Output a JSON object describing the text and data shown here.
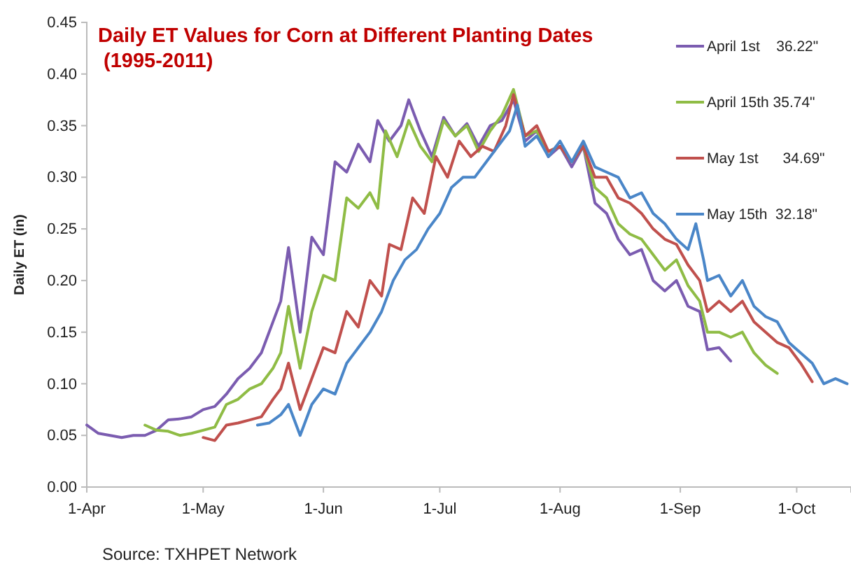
{
  "chart_data": {
    "type": "line",
    "title": "Daily ET Values for Corn at Different Planting Dates (1995-2011)",
    "ylabel": "Daily ET (in)",
    "annotations": [
      "Source: TXHPET Network"
    ],
    "xlim": [
      "--04-01",
      "--10-15"
    ],
    "xticks": [
      {
        "value": "--04-01",
        "label": "1-Apr"
      },
      {
        "value": "--05-01",
        "label": "1-May"
      },
      {
        "value": "--06-01",
        "label": "1-Jun"
      },
      {
        "value": "--07-01",
        "label": "1-Jul"
      },
      {
        "value": "--08-01",
        "label": "1-Aug"
      },
      {
        "value": "--09-01",
        "label": "1-Sep"
      },
      {
        "value": "--10-01",
        "label": "1-Oct"
      }
    ],
    "ylim": [
      0,
      0.45
    ],
    "yticks": [
      {
        "value": 0,
        "label": "0.00"
      },
      {
        "value": 0.05,
        "label": "0.05"
      },
      {
        "value": 0.1,
        "label": "0.10"
      },
      {
        "value": 0.15,
        "label": "0.15"
      },
      {
        "value": 0.2,
        "label": "0.20"
      },
      {
        "value": 0.25,
        "label": "0.25"
      },
      {
        "value": 0.3,
        "label": "0.30"
      },
      {
        "value": 0.35,
        "label": "0.35"
      },
      {
        "value": 0.4,
        "label": "0.40"
      },
      {
        "value": 0.45,
        "label": "0.45"
      }
    ],
    "grid": false,
    "legend": "top right",
    "marker": "none",
    "line_style": "solid",
    "series": [
      {
        "name": "April 1st    36.22\"",
        "color": "#7b5cb0",
        "x": [
          "--04-01",
          "--04-04",
          "--04-07",
          "--04-10",
          "--04-13",
          "--04-16",
          "--04-19",
          "--04-22",
          "--04-25",
          "--04-28",
          "--05-01",
          "--05-04",
          "--05-07",
          "--05-10",
          "--05-13",
          "--05-16",
          "--05-19",
          "--05-21",
          "--05-23",
          "--05-26",
          "--05-29",
          "--06-01",
          "--06-04",
          "--06-07",
          "--06-10",
          "--06-13",
          "--06-15",
          "--06-18",
          "--06-21",
          "--06-23",
          "--06-26",
          "--06-29",
          "--07-02",
          "--07-05",
          "--07-08",
          "--07-11",
          "--07-14",
          "--07-17",
          "--07-20",
          "--07-23",
          "--07-26",
          "--07-29",
          "--08-01",
          "--08-04",
          "--08-07",
          "--08-10",
          "--08-13",
          "--08-16",
          "--08-19",
          "--08-22",
          "--08-25",
          "--08-28",
          "--08-31",
          "--09-03",
          "--09-06",
          "--09-08",
          "--09-11",
          "--09-14"
        ],
        "values": [
          0.06,
          0.052,
          0.05,
          0.048,
          0.05,
          0.05,
          0.055,
          0.065,
          0.066,
          0.068,
          0.075,
          0.078,
          0.09,
          0.105,
          0.115,
          0.13,
          0.16,
          0.18,
          0.232,
          0.15,
          0.242,
          0.225,
          0.315,
          0.305,
          0.332,
          0.315,
          0.355,
          0.335,
          0.35,
          0.375,
          0.345,
          0.32,
          0.358,
          0.34,
          0.352,
          0.33,
          0.35,
          0.355,
          0.375,
          0.335,
          0.345,
          0.32,
          0.33,
          0.31,
          0.33,
          0.275,
          0.265,
          0.24,
          0.225,
          0.23,
          0.2,
          0.19,
          0.2,
          0.175,
          0.17,
          0.133,
          0.135,
          0.122
        ]
      },
      {
        "name": "April 15th 35.74\"",
        "color": "#8fbc45",
        "x": [
          "--04-16",
          "--04-19",
          "--04-22",
          "--04-25",
          "--04-28",
          "--05-01",
          "--05-04",
          "--05-07",
          "--05-10",
          "--05-13",
          "--05-16",
          "--05-19",
          "--05-21",
          "--05-23",
          "--05-26",
          "--05-29",
          "--06-01",
          "--06-04",
          "--06-07",
          "--06-10",
          "--06-13",
          "--06-15",
          "--06-17",
          "--06-20",
          "--06-23",
          "--06-26",
          "--06-29",
          "--07-02",
          "--07-05",
          "--07-08",
          "--07-11",
          "--07-14",
          "--07-17",
          "--07-20",
          "--07-23",
          "--07-26",
          "--07-29",
          "--08-01",
          "--08-04",
          "--08-07",
          "--08-10",
          "--08-13",
          "--08-16",
          "--08-19",
          "--08-22",
          "--08-25",
          "--08-28",
          "--08-31",
          "--09-03",
          "--09-06",
          "--09-08",
          "--09-11",
          "--09-14",
          "--09-17",
          "--09-20",
          "--09-23",
          "--09-26"
        ],
        "values": [
          0.06,
          0.055,
          0.054,
          0.05,
          0.052,
          0.055,
          0.058,
          0.08,
          0.085,
          0.095,
          0.1,
          0.115,
          0.13,
          0.175,
          0.115,
          0.17,
          0.205,
          0.2,
          0.28,
          0.27,
          0.285,
          0.27,
          0.345,
          0.32,
          0.355,
          0.33,
          0.315,
          0.355,
          0.34,
          0.35,
          0.325,
          0.345,
          0.36,
          0.385,
          0.34,
          0.345,
          0.325,
          0.33,
          0.315,
          0.33,
          0.29,
          0.28,
          0.255,
          0.245,
          0.24,
          0.225,
          0.21,
          0.22,
          0.195,
          0.18,
          0.15,
          0.15,
          0.145,
          0.15,
          0.13,
          0.118,
          0.11
        ]
      },
      {
        "name": "May 1st      34.69\"",
        "color": "#c0504d",
        "x": [
          "--05-01",
          "--05-04",
          "--05-07",
          "--05-10",
          "--05-13",
          "--05-16",
          "--05-19",
          "--05-21",
          "--05-23",
          "--05-26",
          "--05-29",
          "--06-01",
          "--06-04",
          "--06-07",
          "--06-10",
          "--06-13",
          "--06-16",
          "--06-18",
          "--06-21",
          "--06-24",
          "--06-27",
          "--06-30",
          "--07-03",
          "--07-06",
          "--07-09",
          "--07-12",
          "--07-15",
          "--07-18",
          "--07-20",
          "--07-23",
          "--07-26",
          "--07-29",
          "--08-01",
          "--08-04",
          "--08-07",
          "--08-10",
          "--08-13",
          "--08-16",
          "--08-19",
          "--08-22",
          "--08-25",
          "--08-28",
          "--08-31",
          "--09-03",
          "--09-06",
          "--09-08",
          "--09-11",
          "--09-14",
          "--09-17",
          "--09-20",
          "--09-23",
          "--09-26",
          "--09-29",
          "--10-02",
          "--10-05"
        ],
        "values": [
          0.048,
          0.045,
          0.06,
          0.062,
          0.065,
          0.068,
          0.085,
          0.095,
          0.12,
          0.075,
          0.105,
          0.135,
          0.13,
          0.17,
          0.155,
          0.2,
          0.185,
          0.235,
          0.23,
          0.28,
          0.265,
          0.32,
          0.3,
          0.335,
          0.32,
          0.33,
          0.325,
          0.35,
          0.38,
          0.34,
          0.35,
          0.325,
          0.33,
          0.315,
          0.33,
          0.3,
          0.3,
          0.28,
          0.275,
          0.265,
          0.25,
          0.24,
          0.235,
          0.215,
          0.2,
          0.17,
          0.18,
          0.17,
          0.18,
          0.16,
          0.15,
          0.14,
          0.135,
          0.12,
          0.102
        ]
      },
      {
        "name": "May 15th  32.18\"",
        "color": "#4a86c8",
        "x": [
          "--05-15",
          "--05-18",
          "--05-21",
          "--05-23",
          "--05-26",
          "--05-29",
          "--06-01",
          "--06-04",
          "--06-07",
          "--06-10",
          "--06-13",
          "--06-16",
          "--06-19",
          "--06-22",
          "--06-25",
          "--06-28",
          "--07-01",
          "--07-04",
          "--07-07",
          "--07-10",
          "--07-13",
          "--07-16",
          "--07-19",
          "--07-21",
          "--07-23",
          "--07-26",
          "--07-29",
          "--08-01",
          "--08-04",
          "--08-07",
          "--08-10",
          "--08-13",
          "--08-16",
          "--08-19",
          "--08-22",
          "--08-25",
          "--08-28",
          "--08-31",
          "--09-03",
          "--09-05",
          "--09-07",
          "--09-08",
          "--09-11",
          "--09-14",
          "--09-17",
          "--09-20",
          "--09-23",
          "--09-26",
          "--09-29",
          "--10-02",
          "--10-05",
          "--10-08",
          "--10-11",
          "--10-14"
        ],
        "values": [
          0.06,
          0.062,
          0.07,
          0.08,
          0.05,
          0.08,
          0.095,
          0.09,
          0.12,
          0.135,
          0.15,
          0.17,
          0.2,
          0.22,
          0.23,
          0.25,
          0.265,
          0.29,
          0.3,
          0.3,
          0.315,
          0.33,
          0.345,
          0.37,
          0.33,
          0.34,
          0.32,
          0.335,
          0.315,
          0.335,
          0.31,
          0.305,
          0.3,
          0.28,
          0.285,
          0.265,
          0.255,
          0.24,
          0.23,
          0.255,
          0.22,
          0.2,
          0.205,
          0.185,
          0.2,
          0.175,
          0.165,
          0.16,
          0.14,
          0.13,
          0.12,
          0.1,
          0.105,
          0.1
        ]
      }
    ]
  }
}
